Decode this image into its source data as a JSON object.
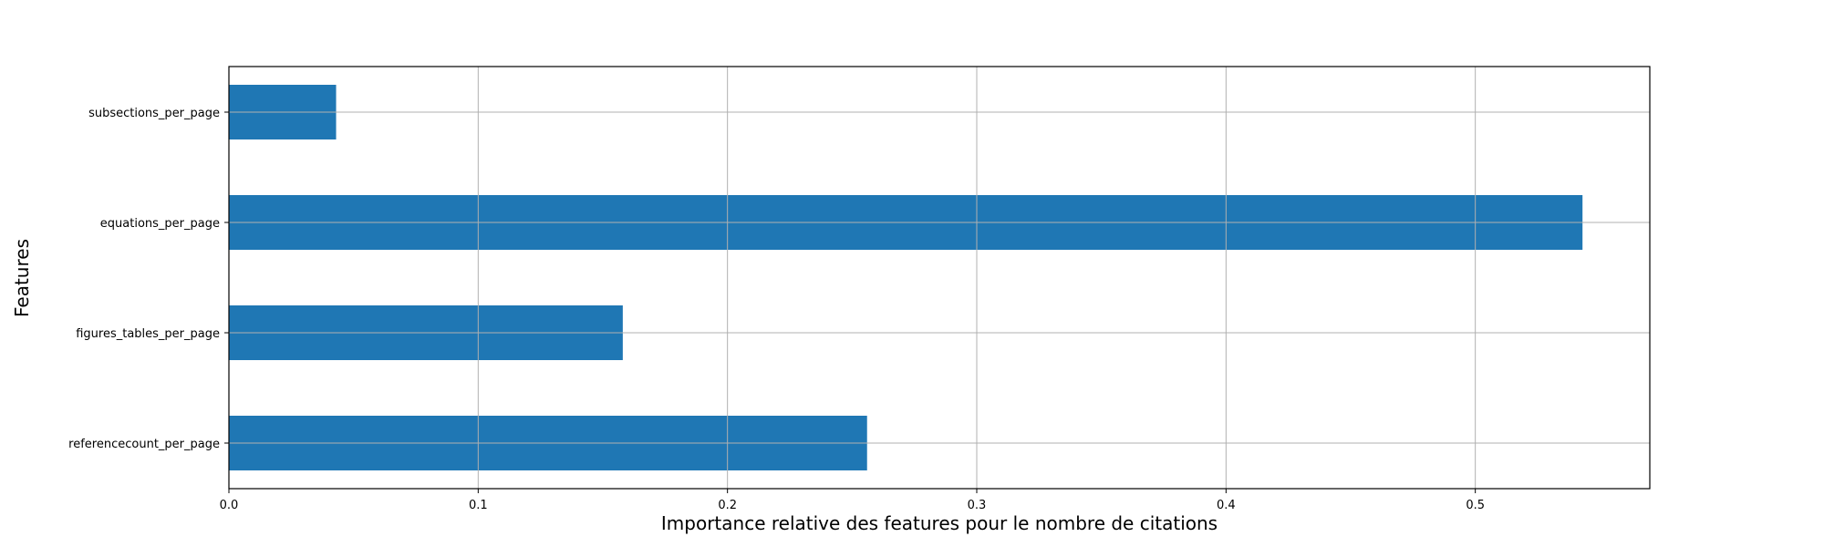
{
  "chart_data": {
    "type": "bar",
    "orientation": "horizontal",
    "categories": [
      "referencecount_per_page",
      "figures_tables_per_page",
      "equations_per_page",
      "subsections_per_page"
    ],
    "values": [
      0.256,
      0.158,
      0.543,
      0.043
    ],
    "xlabel": "Importance relative des features pour le nombre de citations",
    "ylabel": "Features",
    "xlim": [
      0,
      0.57
    ],
    "xticks": [
      0.0,
      0.1,
      0.2,
      0.3,
      0.4,
      0.5
    ],
    "xtick_labels": [
      "0.0",
      "0.1",
      "0.2",
      "0.3",
      "0.4",
      "0.5"
    ],
    "grid": true,
    "legend": "none",
    "bar_color": "#1f77b4"
  }
}
